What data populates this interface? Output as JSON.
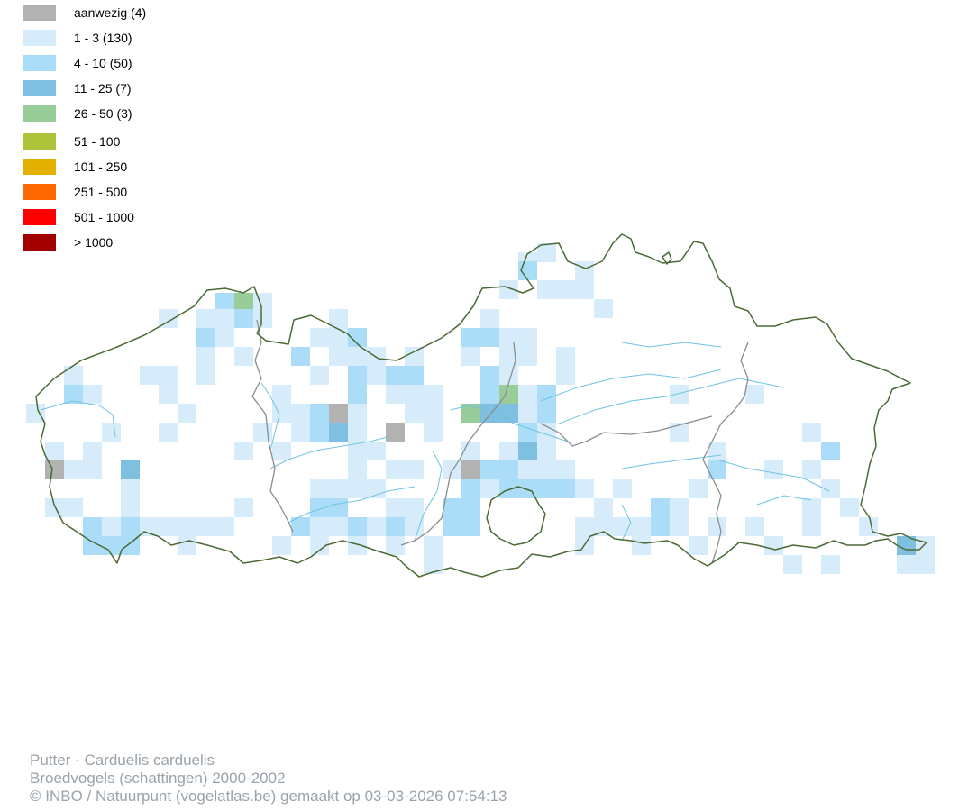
{
  "legend": {
    "items": [
      {
        "label": "aanwezig (4)",
        "color": "#b2b2b2"
      },
      {
        "label": "1 - 3 (130)",
        "color": "#d6ecfa"
      },
      {
        "label": "4 - 10 (50)",
        "color": "#abdcf8"
      },
      {
        "label": "11 - 25 (7)",
        "color": "#7fbfe0"
      },
      {
        "label": "26 - 50 (3)",
        "color": "#98cc98"
      },
      {
        "label": "51 - 100",
        "color": "#adc43a"
      },
      {
        "label": "101 - 250",
        "color": "#e3b000"
      },
      {
        "label": "251 - 500",
        "color": "#ff6a00"
      },
      {
        "label": "501 - 1000",
        "color": "#ff0000"
      },
      {
        "label": "> 1000",
        "color": "#a30000"
      }
    ]
  },
  "colors": {
    "border": "#4a6b35",
    "province_border": "#8c8c8c",
    "rivers": "#6ec3e3"
  },
  "footer": {
    "species": "Putter - Carduelis carduelis",
    "dataset": "Broedvogels (schattingen) 2000-2002",
    "credit": "© INBO / Natuurpunt (vogelatlas.be) gemaakt op 03-03-2026 07:54:13"
  }
}
